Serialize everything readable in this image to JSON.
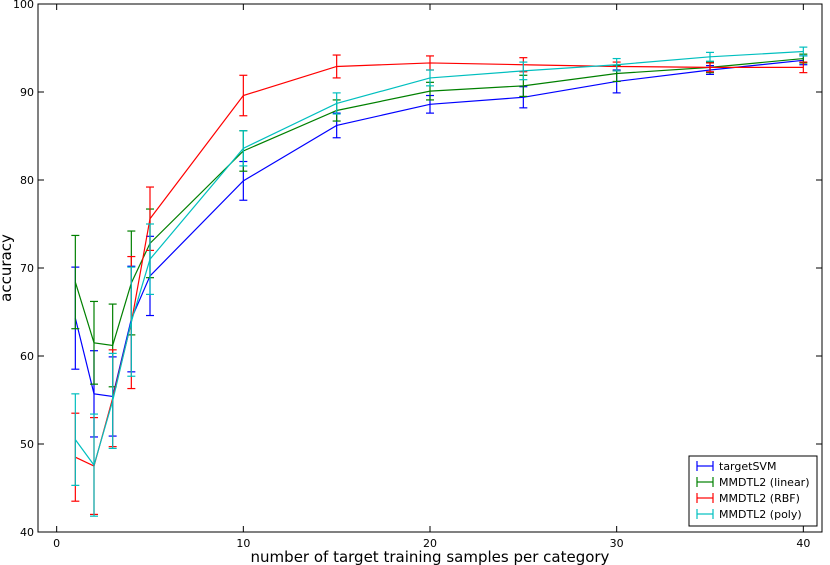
{
  "chart_data": {
    "type": "line",
    "title": "",
    "xlabel": "number of target training samples per category",
    "ylabel": "accuracy",
    "xlim": [
      -1,
      41
    ],
    "ylim": [
      40,
      100
    ],
    "xticks": [
      0,
      10,
      20,
      30,
      40
    ],
    "yticks": [
      40,
      50,
      60,
      70,
      80,
      90,
      100
    ],
    "grid": false,
    "error_bars": true,
    "legend_position": "lower-right",
    "x": [
      1,
      2,
      3,
      4,
      5,
      10,
      15,
      20,
      25,
      30,
      35,
      40
    ],
    "series": [
      {
        "name": "targetSVM",
        "color": "#0000ff",
        "values": [
          64.3,
          55.7,
          55.4,
          64.2,
          69.1,
          79.9,
          86.2,
          88.6,
          89.4,
          91.2,
          92.5,
          93.6
        ],
        "errors": [
          5.8,
          4.9,
          4.5,
          6.0,
          4.5,
          2.2,
          1.4,
          1.0,
          1.2,
          1.3,
          0.5,
          0.5
        ]
      },
      {
        "name": "MMDTL2 (linear)",
        "color": "#008000",
        "values": [
          68.4,
          61.5,
          61.2,
          68.3,
          72.8,
          83.3,
          87.9,
          90.1,
          90.7,
          92.1,
          92.8,
          93.8
        ],
        "errors": [
          5.3,
          4.7,
          4.7,
          5.9,
          3.9,
          2.3,
          1.2,
          1.0,
          1.2,
          0.9,
          0.6,
          0.5
        ]
      },
      {
        "name": "MMDTL2 (RBF)",
        "color": "#ff0000",
        "values": [
          48.5,
          47.5,
          55.2,
          63.8,
          75.6,
          89.6,
          92.9,
          93.3,
          93.1,
          92.9,
          92.8,
          92.8
        ],
        "errors": [
          5.0,
          5.5,
          5.5,
          7.5,
          3.6,
          2.3,
          1.3,
          0.8,
          0.8,
          0.5,
          0.5,
          0.6
        ]
      },
      {
        "name": "MMDTL2 (poly)",
        "color": "#00bfbf",
        "values": [
          50.5,
          47.6,
          54.9,
          63.9,
          71.0,
          83.6,
          88.7,
          91.6,
          92.4,
          93.1,
          94.0,
          94.6
        ],
        "errors": [
          5.2,
          5.8,
          5.4,
          6.2,
          4.0,
          2.0,
          1.2,
          0.9,
          1.0,
          0.7,
          0.5,
          0.5
        ]
      }
    ]
  }
}
